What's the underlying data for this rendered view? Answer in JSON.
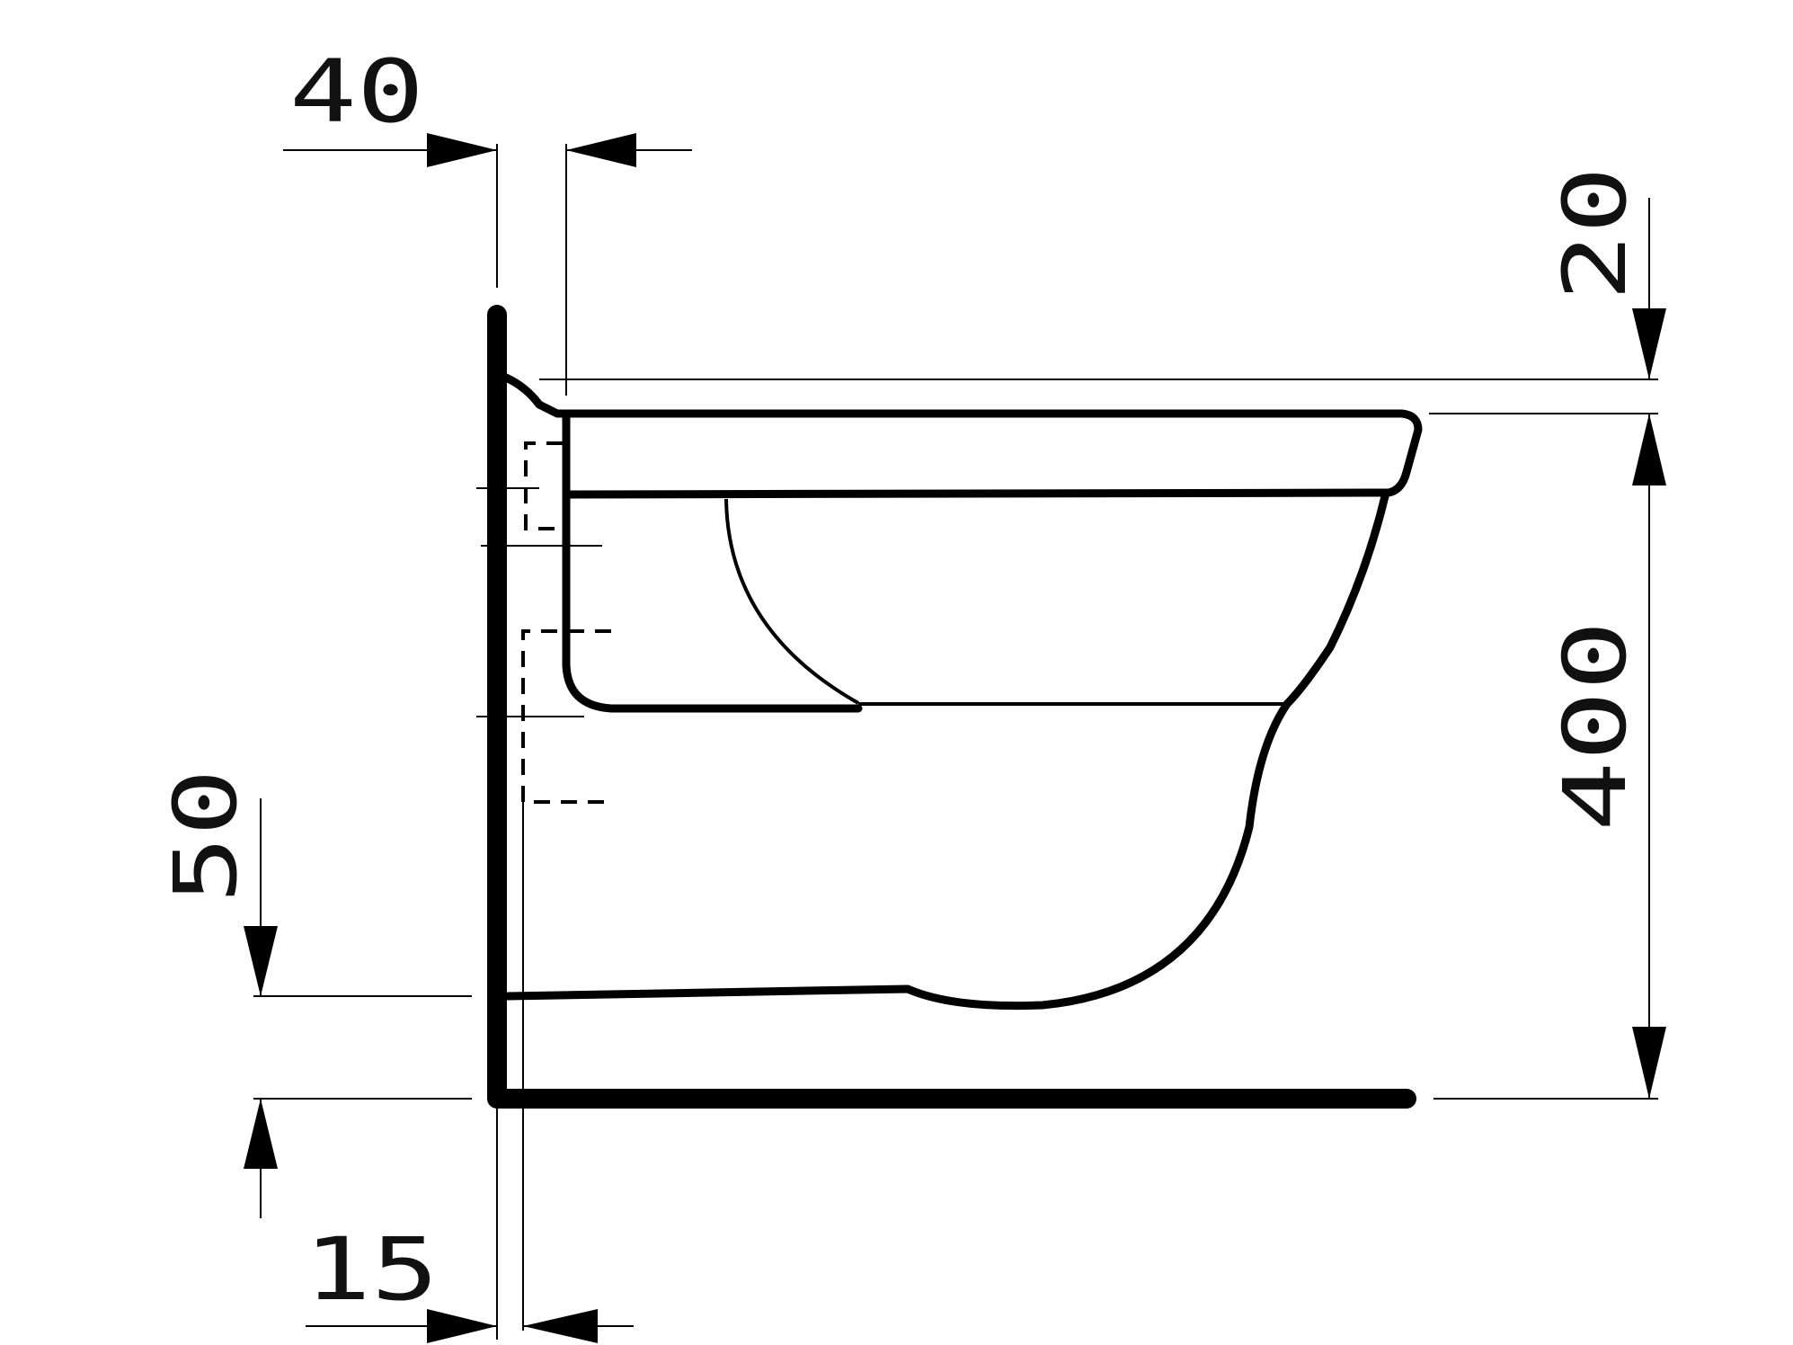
{
  "dimensions": {
    "top_left": "40",
    "top_right": "20",
    "height": "400",
    "left": "50",
    "bottom": "15"
  }
}
